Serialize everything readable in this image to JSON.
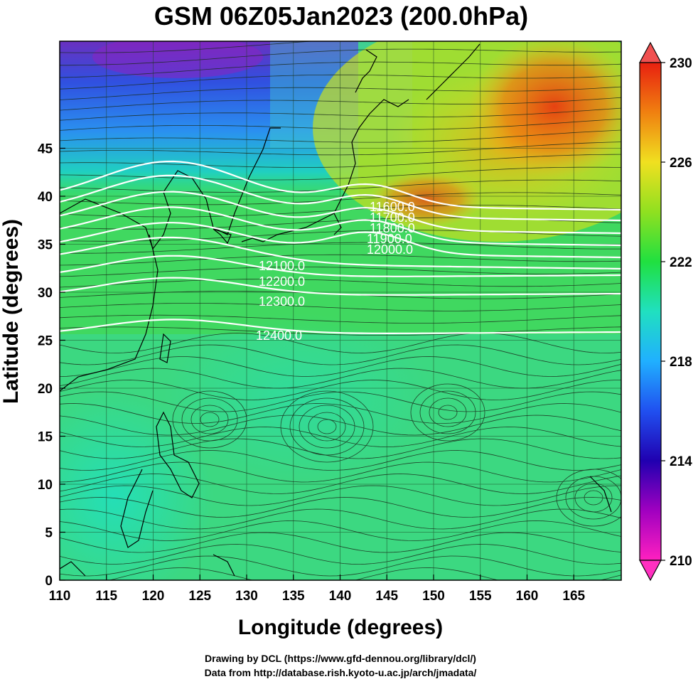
{
  "title": "GSM 06Z05Jan2023 (200.0hPa)",
  "xlabel": "Longitude (degrees)",
  "ylabel": "Latitude  (degrees)",
  "credits": {
    "line1": "Drawing by DCL (https://www.gfd-dennou.org/library/dcl/)",
    "line2": "Data from http://database.rish.kyoto-u.ac.jp/arch/jmadata/"
  },
  "x_ticks": [
    "110",
    "115",
    "120",
    "125",
    "130",
    "135",
    "140",
    "145",
    "150",
    "155",
    "160",
    "165"
  ],
  "y_ticks": [
    "0",
    "5",
    "10",
    "15",
    "20",
    "25",
    "30",
    "35",
    "40",
    "45"
  ],
  "colorbar": {
    "labels": [
      "210",
      "214",
      "218",
      "222",
      "226",
      "230"
    ],
    "colors": [
      "#ff20b0",
      "#7000c0",
      "#1030d0",
      "#20a0ff",
      "#20e0c0",
      "#20e040",
      "#a0e020",
      "#f0e020",
      "#f08010",
      "#e82010"
    ]
  },
  "contours": [
    {
      "label": "11600.0"
    },
    {
      "label": "11700.0"
    },
    {
      "label": "11800.0"
    },
    {
      "label": "11900.0"
    },
    {
      "label": "12000.0"
    },
    {
      "label": "12100.0"
    },
    {
      "label": "12200.0"
    },
    {
      "label": "12300.0"
    },
    {
      "label": "12400.0"
    }
  ]
}
